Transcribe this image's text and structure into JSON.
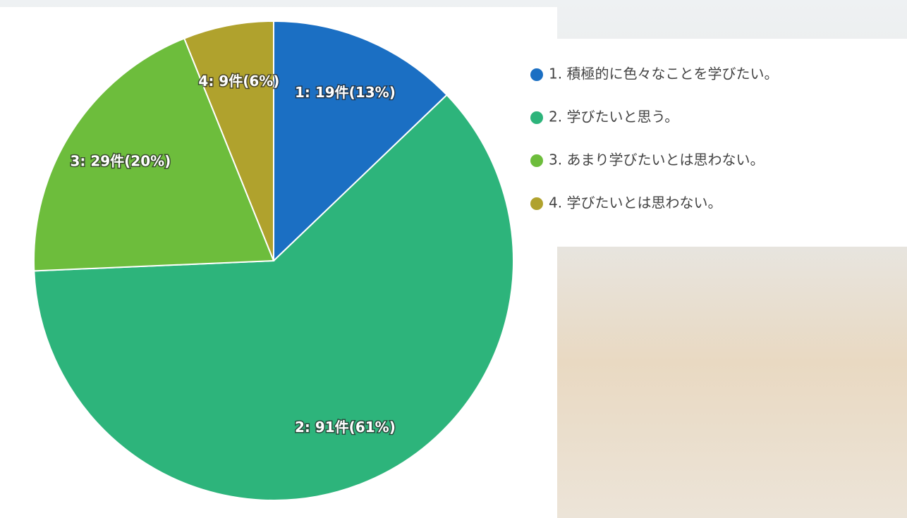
{
  "chart_data": {
    "type": "pie",
    "categories": [
      "1. 積極的に色々なことを学びたい。",
      "2. 学びたいと思う。",
      "3. あまり学びたいとは思わない。",
      "4. 学びたいとは思わない。"
    ],
    "values": [
      19,
      91,
      29,
      9
    ],
    "value_labels": [
      "1: 19件(13%)",
      "2: 91件(61%)",
      "3: 29件(20%)",
      "4: 9件(6%)"
    ],
    "colors": [
      "#1b6fc3",
      "#2db47b",
      "#6dbd3c",
      "#b0a22d"
    ],
    "legend": "right"
  }
}
